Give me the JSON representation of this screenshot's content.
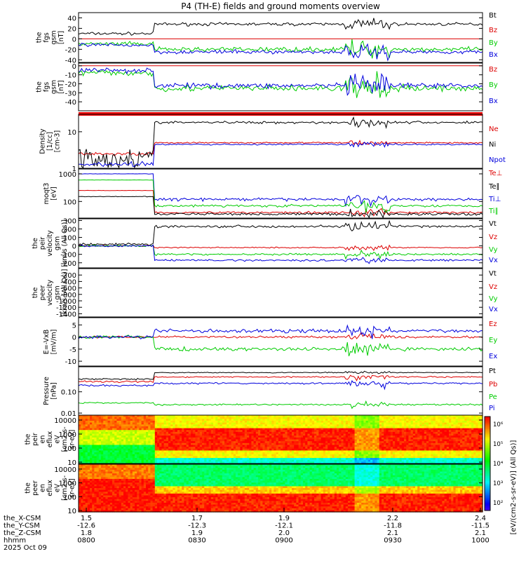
{
  "title": "P4 (TH-E) fields and ground moments overview",
  "footer": {
    "rows": [
      "the_X-CSM",
      "the_Y-CSM",
      "the_Z-CSM",
      "hhmm",
      "2025 Oct 09"
    ],
    "ticks": [
      [
        "1.5",
        "-12.6",
        "1.8",
        "0800"
      ],
      [
        "1.7",
        "-12.3",
        "1.9",
        "0830"
      ],
      [
        "1.9",
        "-12.1",
        "2.0",
        "0900"
      ],
      [
        "2.2",
        "-11.8",
        "2.1",
        "0930"
      ],
      [
        "2.4",
        "-11.5",
        "2.1",
        "1000"
      ]
    ]
  },
  "colorbar": {
    "labels": [
      "10⁶",
      "10⁵",
      "10⁴",
      "10³",
      "10²"
    ],
    "title": "[eV/(cm2-s-sr-eV)] (All Qs)]"
  },
  "chart_data": [
    {
      "type": "line",
      "ylabel_lines": [
        "the",
        "fgs",
        "gsm",
        "[nT]"
      ],
      "ylim": [
        -45,
        50
      ],
      "ticks": [
        {
          "v": 40,
          "l": "40"
        },
        {
          "v": 20,
          "l": "20"
        },
        {
          "v": 0,
          "l": "0"
        },
        {
          "v": -20,
          "l": "-20"
        },
        {
          "v": -40,
          "l": "-40"
        }
      ],
      "series": [
        {
          "name": "Bt",
          "color": "#000000",
          "a": 10,
          "b": 28,
          "noise": 4
        },
        {
          "name": "Bz",
          "color": "#dd0000",
          "a": 0,
          "b": 0,
          "noise": 0
        },
        {
          "name": "By",
          "color": "#00cc00",
          "a": -10,
          "b": -20,
          "noise": 6
        },
        {
          "name": "Bx",
          "color": "#0000dd",
          "a": -12,
          "b": -25,
          "noise": 5
        }
      ]
    },
    {
      "type": "line",
      "ylabel_lines": [
        "the",
        "fgs",
        "gsm",
        "[nT]"
      ],
      "ylim": [
        -50,
        3
      ],
      "ticks": [
        {
          "v": 0,
          "l": "0"
        },
        {
          "v": -10,
          "l": "-10"
        },
        {
          "v": -20,
          "l": "-20"
        },
        {
          "v": -30,
          "l": "-30"
        },
        {
          "v": -40,
          "l": "-40"
        }
      ],
      "series": [
        {
          "name": "Bz",
          "color": "#dd0000",
          "a": 0,
          "b": 0,
          "noise": 0
        },
        {
          "name": "By",
          "color": "#00cc00",
          "a": -8,
          "b": -25,
          "noise": 5
        },
        {
          "name": "Bx",
          "color": "#0000dd",
          "a": -5,
          "b": -22,
          "noise": 4
        }
      ]
    },
    {
      "type": "line",
      "log": true,
      "ylabel_lines": [
        "Density",
        "[1/cc]",
        "[cm-3]"
      ],
      "ylim": [
        1,
        30
      ],
      "ticks": [
        {
          "v": 10,
          "l": "10"
        },
        {
          "v": 1,
          "l": "1"
        }
      ],
      "series": [
        {
          "name": "Ne",
          "color": "#dd0000",
          "a": 2.5,
          "b": 5,
          "noise": 0.3
        },
        {
          "name": "Ni",
          "color": "#000000",
          "a": 2,
          "b": 18,
          "noise": 2
        },
        {
          "name": "Npot",
          "color": "#0000dd",
          "a": 1.3,
          "b": 4.5,
          "noise": 0.3
        }
      ]
    },
    {
      "type": "line",
      "log": true,
      "ylabel_lines": [
        "moqt3",
        "[eV]"
      ],
      "ylim": [
        25,
        1500
      ],
      "ticks": [
        {
          "v": 1000,
          "l": "1000"
        },
        {
          "v": 100,
          "l": "100"
        }
      ],
      "series": [
        {
          "name": "Te⊥",
          "color": "#dd0000",
          "a": 250,
          "b": 40,
          "noise": 5
        },
        {
          "name": "Te∥",
          "color": "#000000",
          "a": 150,
          "b": 35,
          "noise": 5
        },
        {
          "name": "Ti⊥",
          "color": "#0000dd",
          "a": 1000,
          "b": 120,
          "noise": 20
        },
        {
          "name": "Ti∥",
          "color": "#00cc00",
          "a": 600,
          "b": 70,
          "noise": 10
        }
      ]
    },
    {
      "type": "line",
      "ylabel_lines": [
        "the",
        "peir",
        "velocity",
        "gsm",
        "[km/s (All Qs)]"
      ],
      "ylim": [
        -260,
        320
      ],
      "ticks": [
        {
          "v": 300,
          "l": "300"
        },
        {
          "v": 200,
          "l": "200"
        },
        {
          "v": 100,
          "l": "100"
        },
        {
          "v": 0,
          "l": "0"
        },
        {
          "v": -100,
          "l": "-100"
        },
        {
          "v": -200,
          "l": "-200"
        }
      ],
      "series": [
        {
          "name": "Vt",
          "color": "#000000",
          "a": 20,
          "b": 230,
          "noise": 20
        },
        {
          "name": "Vz",
          "color": "#dd0000",
          "a": 0,
          "b": -20,
          "noise": 10
        },
        {
          "name": "Vy",
          "color": "#00cc00",
          "a": 0,
          "b": -100,
          "noise": 15
        },
        {
          "name": "Vx",
          "color": "#0000dd",
          "a": 0,
          "b": -170,
          "noise": 15
        }
      ]
    },
    {
      "type": "line",
      "ylabel_lines": [
        "the",
        "peer",
        "velocity",
        "gsm",
        "[km/s (All Qs)]"
      ],
      "ylim": [
        -1500,
        0
      ],
      "ticks": [
        {
          "v": -200,
          "l": "-200"
        },
        {
          "v": -400,
          "l": "-400"
        },
        {
          "v": -600,
          "l": "-600"
        },
        {
          "v": -800,
          "l": "-800"
        },
        {
          "v": -1000,
          "l": "-1000"
        },
        {
          "v": -1200,
          "l": "-1200"
        },
        {
          "v": -1400,
          "l": "-1400"
        }
      ],
      "series": [
        {
          "name": "Vt",
          "color": "#000000"
        },
        {
          "name": "Vz",
          "color": "#dd0000"
        },
        {
          "name": "Vy",
          "color": "#00cc00"
        },
        {
          "name": "Vx",
          "color": "#0000dd"
        }
      ]
    },
    {
      "type": "line",
      "ylabel_lines": [
        "E=-VxB",
        "[mV/m]"
      ],
      "ylim": [
        -12,
        8
      ],
      "ticks": [
        {
          "v": 5,
          "l": "5"
        },
        {
          "v": 0,
          "l": "0"
        },
        {
          "v": -5,
          "l": "-5"
        },
        {
          "v": -10,
          "l": "-10"
        }
      ],
      "series": [
        {
          "name": "Ez",
          "color": "#dd0000",
          "a": 0,
          "b": 0,
          "noise": 0.6
        },
        {
          "name": "Ey",
          "color": "#00cc00",
          "a": 0,
          "b": -5,
          "noise": 1
        },
        {
          "name": "Ex",
          "color": "#0000dd",
          "a": 0,
          "b": 2.5,
          "noise": 1
        }
      ]
    },
    {
      "type": "line",
      "log": true,
      "ylabel_lines": [
        "Pressure",
        "[nPa]"
      ],
      "ylim": [
        0.008,
        1.5
      ],
      "ticks": [
        {
          "v": 0.1,
          "l": "0.10"
        },
        {
          "v": 0.01,
          "l": "0.01"
        }
      ],
      "series": [
        {
          "name": "Pt",
          "color": "#000000",
          "a": 0.4,
          "b": 0.8,
          "noise": 0.05
        },
        {
          "name": "Pb",
          "color": "#dd0000",
          "a": 0.3,
          "b": 0.5,
          "noise": 0.05
        },
        {
          "name": "Pe",
          "color": "#00cc00",
          "a": 0.03,
          "b": 0.025,
          "noise": 0.003
        },
        {
          "name": "Pi",
          "color": "#0000dd",
          "a": 0.2,
          "b": 0.25,
          "noise": 0.03
        }
      ]
    },
    {
      "type": "heatmap",
      "ylabel_lines": [
        "the",
        "peir",
        "en",
        "eflux",
        "eV",
        "[cm2-s-",
        "sr-eV]"
      ],
      "ticks": [
        {
          "v": 10000,
          "l": "10000"
        },
        {
          "v": 1000,
          "l": "1000"
        },
        {
          "v": 100,
          "l": "100"
        },
        {
          "v": 10,
          "l": "10"
        }
      ]
    },
    {
      "type": "heatmap",
      "ylabel_lines": [
        "the",
        "peer",
        "en",
        "eflux",
        "eV",
        "[cm2-s-",
        "sr-eV]"
      ],
      "ticks": [
        {
          "v": 10000,
          "l": "10000"
        },
        {
          "v": 1000,
          "l": "1000"
        },
        {
          "v": 100,
          "l": "100"
        },
        {
          "v": 10,
          "l": "10"
        }
      ]
    }
  ]
}
